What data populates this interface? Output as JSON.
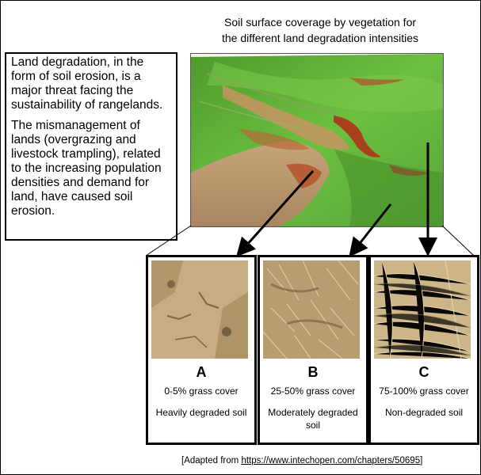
{
  "title_line1": "Soil surface coverage by vegetation for",
  "title_line2": "the different land degradation intensities",
  "text": {
    "para1": "Land degradation, in the form of soil erosion, is a major threat facing the sustainability of rangelands.",
    "para2": "The mismanagement of lands (overgrazing and livestock trampling), related to the increasing population densities and demand for land, have caused soil erosion."
  },
  "panels": [
    {
      "letter": "A",
      "cover": "0-5% grass cover",
      "desc": "Heavily degraded soil"
    },
    {
      "letter": "B",
      "cover": "25-50%  grass cover",
      "desc": "Moderately degraded soil"
    },
    {
      "letter": "C",
      "cover": "75-100% grass cover",
      "desc": "Non-degraded soil"
    }
  ],
  "source": {
    "prefix": "[Adapted from ",
    "link": "https://www.intechopen.com/chapters/50695",
    "suffix": "]"
  },
  "colors": {
    "grass_green": "#5fa83a",
    "soil_red": "#b5532a",
    "dry_grass": "#d2b98a"
  }
}
